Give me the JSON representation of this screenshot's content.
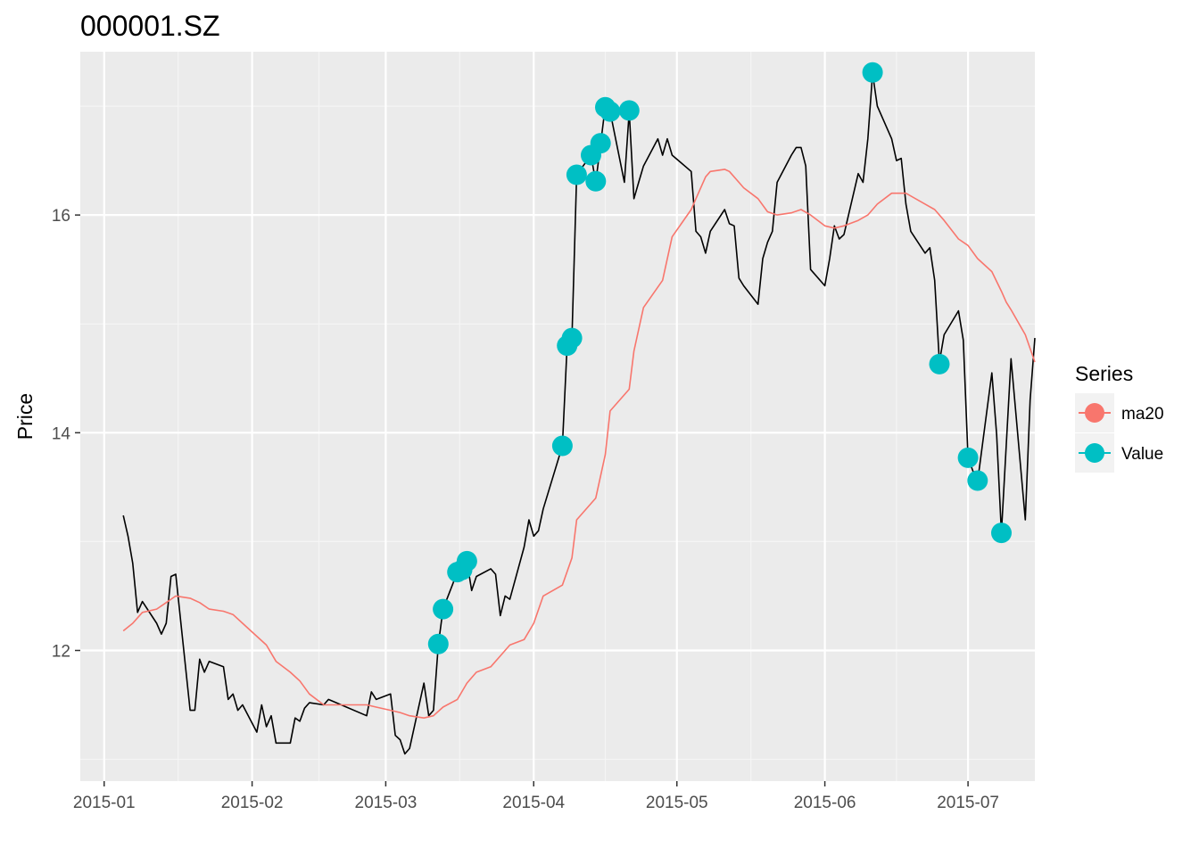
{
  "chart_data": {
    "type": "line",
    "title": "000001.SZ",
    "xlabel": "",
    "ylabel": "Price",
    "x_ticks": [
      "2015-01",
      "2015-02",
      "2015-03",
      "2015-04",
      "2015-05",
      "2015-06",
      "2015-07"
    ],
    "y_ticks": [
      12,
      14,
      16
    ],
    "xlim": [
      "2014-12-27",
      "2015-07-15"
    ],
    "ylim": [
      10.8,
      17.5
    ],
    "grid": true,
    "background": "#ebebeb",
    "legend": {
      "title": "Series",
      "position": "right",
      "items": [
        {
          "label": "ma20",
          "color": "#f8766d"
        },
        {
          "label": "Value",
          "color": "#00bfc4"
        }
      ]
    },
    "series": [
      {
        "name": "Value",
        "color": "#000000",
        "points": [
          [
            "2015-01-05",
            13.24
          ],
          [
            "2015-01-06",
            13.05
          ],
          [
            "2015-01-07",
            12.8
          ],
          [
            "2015-01-08",
            12.35
          ],
          [
            "2015-01-09",
            12.45
          ],
          [
            "2015-01-12",
            12.25
          ],
          [
            "2015-01-13",
            12.15
          ],
          [
            "2015-01-14",
            12.25
          ],
          [
            "2015-01-15",
            12.68
          ],
          [
            "2015-01-16",
            12.7
          ],
          [
            "2015-01-19",
            11.45
          ],
          [
            "2015-01-20",
            11.45
          ],
          [
            "2015-01-21",
            11.92
          ],
          [
            "2015-01-22",
            11.8
          ],
          [
            "2015-01-23",
            11.9
          ],
          [
            "2015-01-26",
            11.85
          ],
          [
            "2015-01-27",
            11.55
          ],
          [
            "2015-01-28",
            11.6
          ],
          [
            "2015-01-29",
            11.45
          ],
          [
            "2015-01-30",
            11.5
          ],
          [
            "2015-02-02",
            11.25
          ],
          [
            "2015-02-03",
            11.5
          ],
          [
            "2015-02-04",
            11.3
          ],
          [
            "2015-02-05",
            11.4
          ],
          [
            "2015-02-06",
            11.15
          ],
          [
            "2015-02-09",
            11.15
          ],
          [
            "2015-02-10",
            11.38
          ],
          [
            "2015-02-11",
            11.35
          ],
          [
            "2015-02-12",
            11.47
          ],
          [
            "2015-02-13",
            11.52
          ],
          [
            "2015-02-16",
            11.5
          ],
          [
            "2015-02-17",
            11.55
          ],
          [
            "2015-02-25",
            11.4
          ],
          [
            "2015-02-26",
            11.62
          ],
          [
            "2015-02-27",
            11.55
          ],
          [
            "2015-03-02",
            11.6
          ],
          [
            "2015-03-03",
            11.22
          ],
          [
            "2015-03-04",
            11.18
          ],
          [
            "2015-03-05",
            11.05
          ],
          [
            "2015-03-06",
            11.1
          ],
          [
            "2015-03-09",
            11.7
          ],
          [
            "2015-03-10",
            11.4
          ],
          [
            "2015-03-11",
            11.45
          ],
          [
            "2015-03-12",
            12.05
          ],
          [
            "2015-03-13",
            12.38
          ],
          [
            "2015-03-16",
            12.72
          ],
          [
            "2015-03-17",
            12.75
          ],
          [
            "2015-03-18",
            12.82
          ],
          [
            "2015-03-19",
            12.55
          ],
          [
            "2015-03-20",
            12.68
          ],
          [
            "2015-03-23",
            12.75
          ],
          [
            "2015-03-24",
            12.7
          ],
          [
            "2015-03-25",
            12.32
          ],
          [
            "2015-03-26",
            12.5
          ],
          [
            "2015-03-27",
            12.47
          ],
          [
            "2015-03-30",
            12.95
          ],
          [
            "2015-03-31",
            13.2
          ],
          [
            "2015-04-01",
            13.05
          ],
          [
            "2015-04-02",
            13.1
          ],
          [
            "2015-04-03",
            13.3
          ],
          [
            "2015-04-07",
            13.88
          ],
          [
            "2015-04-08",
            14.8
          ],
          [
            "2015-04-09",
            14.87
          ],
          [
            "2015-04-10",
            16.37
          ],
          [
            "2015-04-13",
            16.55
          ],
          [
            "2015-04-14",
            16.3
          ],
          [
            "2015-04-15",
            16.65
          ],
          [
            "2015-04-16",
            17.0
          ],
          [
            "2015-04-17",
            16.95
          ],
          [
            "2015-04-20",
            16.3
          ],
          [
            "2015-04-21",
            16.95
          ],
          [
            "2015-04-22",
            16.15
          ],
          [
            "2015-04-23",
            16.3
          ],
          [
            "2015-04-24",
            16.45
          ],
          [
            "2015-04-27",
            16.7
          ],
          [
            "2015-04-28",
            16.55
          ],
          [
            "2015-04-29",
            16.7
          ],
          [
            "2015-04-30",
            16.55
          ],
          [
            "2015-05-04",
            16.4
          ],
          [
            "2015-05-05",
            15.85
          ],
          [
            "2015-05-06",
            15.8
          ],
          [
            "2015-05-07",
            15.65
          ],
          [
            "2015-05-08",
            15.85
          ],
          [
            "2015-05-11",
            16.05
          ],
          [
            "2015-05-12",
            15.92
          ],
          [
            "2015-05-13",
            15.9
          ],
          [
            "2015-05-14",
            15.42
          ],
          [
            "2015-05-15",
            15.35
          ],
          [
            "2015-05-18",
            15.18
          ],
          [
            "2015-05-19",
            15.6
          ],
          [
            "2015-05-20",
            15.75
          ],
          [
            "2015-05-21",
            15.85
          ],
          [
            "2015-05-22",
            16.3
          ],
          [
            "2015-05-25",
            16.55
          ],
          [
            "2015-05-26",
            16.62
          ],
          [
            "2015-05-27",
            16.62
          ],
          [
            "2015-05-28",
            16.45
          ],
          [
            "2015-05-29",
            15.5
          ],
          [
            "2015-06-01",
            15.35
          ],
          [
            "2015-06-02",
            15.6
          ],
          [
            "2015-06-03",
            15.9
          ],
          [
            "2015-06-04",
            15.78
          ],
          [
            "2015-06-05",
            15.82
          ],
          [
            "2015-06-08",
            16.38
          ],
          [
            "2015-06-09",
            16.3
          ],
          [
            "2015-06-10",
            16.7
          ],
          [
            "2015-06-11",
            17.3
          ],
          [
            "2015-06-12",
            17.0
          ],
          [
            "2015-06-15",
            16.7
          ],
          [
            "2015-06-16",
            16.5
          ],
          [
            "2015-06-17",
            16.52
          ],
          [
            "2015-06-18",
            16.1
          ],
          [
            "2015-06-19",
            15.85
          ],
          [
            "2015-06-22",
            15.65
          ],
          [
            "2015-06-23",
            15.7
          ],
          [
            "2015-06-24",
            15.4
          ],
          [
            "2015-06-25",
            14.65
          ],
          [
            "2015-06-26",
            14.9
          ],
          [
            "2015-06-29",
            15.12
          ],
          [
            "2015-06-30",
            14.85
          ],
          [
            "2015-07-01",
            13.77
          ],
          [
            "2015-07-02",
            13.65
          ],
          [
            "2015-07-03",
            13.55
          ],
          [
            "2015-07-06",
            14.55
          ],
          [
            "2015-07-07",
            13.98
          ],
          [
            "2015-07-08",
            13.08
          ],
          [
            "2015-07-09",
            13.88
          ],
          [
            "2015-07-10",
            14.68
          ],
          [
            "2015-07-13",
            13.2
          ],
          [
            "2015-07-14",
            14.3
          ],
          [
            "2015-07-15",
            14.87
          ]
        ]
      },
      {
        "name": "ma20",
        "color": "#f8766d",
        "points": [
          [
            "2015-01-05",
            12.18
          ],
          [
            "2015-01-07",
            12.25
          ],
          [
            "2015-01-09",
            12.35
          ],
          [
            "2015-01-12",
            12.38
          ],
          [
            "2015-01-14",
            12.44
          ],
          [
            "2015-01-16",
            12.5
          ],
          [
            "2015-01-19",
            12.48
          ],
          [
            "2015-01-21",
            12.44
          ],
          [
            "2015-01-23",
            12.38
          ],
          [
            "2015-01-26",
            12.36
          ],
          [
            "2015-01-28",
            12.33
          ],
          [
            "2015-01-30",
            12.25
          ],
          [
            "2015-02-02",
            12.13
          ],
          [
            "2015-02-04",
            12.05
          ],
          [
            "2015-02-06",
            11.9
          ],
          [
            "2015-02-09",
            11.8
          ],
          [
            "2015-02-11",
            11.72
          ],
          [
            "2015-02-13",
            11.6
          ],
          [
            "2015-02-16",
            11.5
          ],
          [
            "2015-02-25",
            11.5
          ],
          [
            "2015-02-27",
            11.48
          ],
          [
            "2015-03-02",
            11.45
          ],
          [
            "2015-03-04",
            11.43
          ],
          [
            "2015-03-06",
            11.4
          ],
          [
            "2015-03-09",
            11.38
          ],
          [
            "2015-03-11",
            11.4
          ],
          [
            "2015-03-13",
            11.48
          ],
          [
            "2015-03-16",
            11.55
          ],
          [
            "2015-03-18",
            11.7
          ],
          [
            "2015-03-20",
            11.8
          ],
          [
            "2015-03-23",
            11.85
          ],
          [
            "2015-03-25",
            11.95
          ],
          [
            "2015-03-27",
            12.05
          ],
          [
            "2015-03-30",
            12.1
          ],
          [
            "2015-04-01",
            12.25
          ],
          [
            "2015-04-03",
            12.5
          ],
          [
            "2015-04-07",
            12.6
          ],
          [
            "2015-04-09",
            12.85
          ],
          [
            "2015-04-10",
            13.2
          ],
          [
            "2015-04-14",
            13.4
          ],
          [
            "2015-04-16",
            13.8
          ],
          [
            "2015-04-17",
            14.2
          ],
          [
            "2015-04-21",
            14.4
          ],
          [
            "2015-04-22",
            14.75
          ],
          [
            "2015-04-24",
            15.15
          ],
          [
            "2015-04-28",
            15.4
          ],
          [
            "2015-04-30",
            15.8
          ],
          [
            "2015-05-04",
            16.05
          ],
          [
            "2015-05-05",
            16.15
          ],
          [
            "2015-05-07",
            16.35
          ],
          [
            "2015-05-08",
            16.4
          ],
          [
            "2015-05-11",
            16.42
          ],
          [
            "2015-05-12",
            16.4
          ],
          [
            "2015-05-14",
            16.3
          ],
          [
            "2015-05-15",
            16.25
          ],
          [
            "2015-05-18",
            16.15
          ],
          [
            "2015-05-20",
            16.03
          ],
          [
            "2015-05-22",
            16.0
          ],
          [
            "2015-05-25",
            16.02
          ],
          [
            "2015-05-27",
            16.05
          ],
          [
            "2015-05-29",
            16.0
          ],
          [
            "2015-06-01",
            15.9
          ],
          [
            "2015-06-03",
            15.88
          ],
          [
            "2015-06-05",
            15.9
          ],
          [
            "2015-06-08",
            15.95
          ],
          [
            "2015-06-10",
            16.0
          ],
          [
            "2015-06-12",
            16.1
          ],
          [
            "2015-06-15",
            16.2
          ],
          [
            "2015-06-18",
            16.2
          ],
          [
            "2015-06-22",
            16.1
          ],
          [
            "2015-06-24",
            16.05
          ],
          [
            "2015-06-26",
            15.95
          ],
          [
            "2015-06-29",
            15.78
          ],
          [
            "2015-07-01",
            15.72
          ],
          [
            "2015-07-03",
            15.6
          ],
          [
            "2015-07-06",
            15.48
          ],
          [
            "2015-07-08",
            15.3
          ],
          [
            "2015-07-09",
            15.2
          ],
          [
            "2015-07-10",
            15.13
          ],
          [
            "2015-07-13",
            14.9
          ],
          [
            "2015-07-15",
            14.65
          ]
        ]
      }
    ],
    "highlight_points": {
      "name": "Value",
      "color": "#00bfc4",
      "points": [
        [
          "2015-03-12",
          12.06
        ],
        [
          "2015-03-13",
          12.38
        ],
        [
          "2015-03-16",
          12.72
        ],
        [
          "2015-03-17",
          12.74
        ],
        [
          "2015-03-18",
          12.82
        ],
        [
          "2015-04-07",
          13.88
        ],
        [
          "2015-04-08",
          14.8
        ],
        [
          "2015-04-09",
          14.87
        ],
        [
          "2015-04-10",
          16.37
        ],
        [
          "2015-04-13",
          16.55
        ],
        [
          "2015-04-14",
          16.31
        ],
        [
          "2015-04-15",
          16.66
        ],
        [
          "2015-04-16",
          16.99
        ],
        [
          "2015-04-17",
          16.95
        ],
        [
          "2015-04-21",
          16.96
        ],
        [
          "2015-06-11",
          17.31
        ],
        [
          "2015-06-25",
          14.63
        ],
        [
          "2015-07-01",
          13.77
        ],
        [
          "2015-07-03",
          13.56
        ],
        [
          "2015-07-08",
          13.08
        ]
      ]
    }
  }
}
